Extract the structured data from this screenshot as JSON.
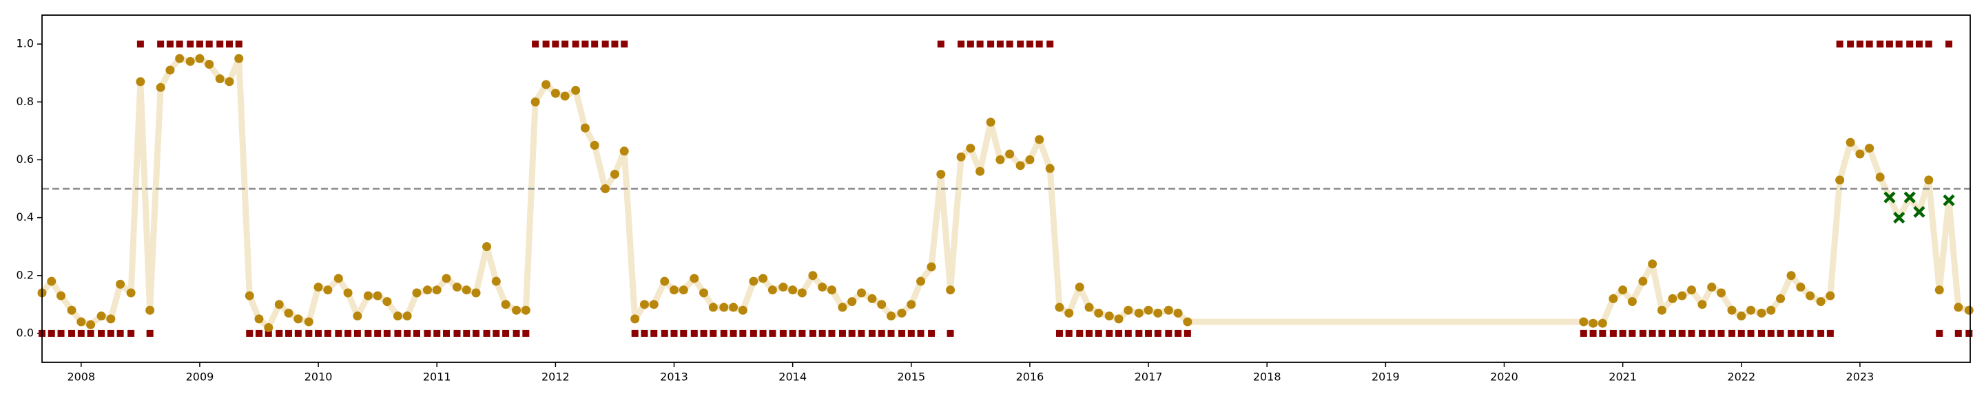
{
  "chart_data": {
    "type": "line",
    "x": [
      2007.67,
      2007.75,
      2007.83,
      2007.92,
      2008,
      2008.08,
      2008.17,
      2008.25,
      2008.33,
      2008.42,
      2008.5,
      2008.58,
      2008.67,
      2008.75,
      2008.83,
      2008.92,
      2009,
      2009.08,
      2009.17,
      2009.25,
      2009.33,
      2009.42,
      2009.5,
      2009.58,
      2009.67,
      2009.75,
      2009.83,
      2009.92,
      2010,
      2010.08,
      2010.17,
      2010.25,
      2010.33,
      2010.42,
      2010.5,
      2010.58,
      2010.67,
      2010.75,
      2010.83,
      2010.92,
      2011,
      2011.08,
      2011.17,
      2011.25,
      2011.33,
      2011.42,
      2011.5,
      2011.58,
      2011.67,
      2011.75,
      2011.83,
      2011.92,
      2012,
      2012.08,
      2012.17,
      2012.25,
      2012.33,
      2012.42,
      2012.5,
      2012.58,
      2012.67,
      2012.75,
      2012.83,
      2012.92,
      2013,
      2013.08,
      2013.17,
      2013.25,
      2013.33,
      2013.42,
      2013.5,
      2013.58,
      2013.67,
      2013.75,
      2013.83,
      2013.92,
      2014,
      2014.08,
      2014.17,
      2014.25,
      2014.33,
      2014.42,
      2014.5,
      2014.58,
      2014.67,
      2014.75,
      2014.83,
      2014.92,
      2015,
      2015.08,
      2015.17,
      2015.25,
      2015.33,
      2015.42,
      2015.5,
      2015.58,
      2015.67,
      2015.75,
      2015.83,
      2015.92,
      2016,
      2016.08,
      2016.17,
      2016.25,
      2016.33,
      2016.42,
      2016.5,
      2016.58,
      2016.67,
      2016.75,
      2016.83,
      2016.92,
      2017,
      2017.08,
      2017.17,
      2017.25,
      2017.33,
      2020.67,
      2020.75,
      2020.83,
      2020.92,
      2021,
      2021.08,
      2021.17,
      2021.25,
      2021.33,
      2021.42,
      2021.5,
      2021.58,
      2021.67,
      2021.75,
      2021.83,
      2021.92,
      2022,
      2022.08,
      2022.17,
      2022.25,
      2022.33,
      2022.42,
      2022.5,
      2022.58,
      2022.67,
      2022.75,
      2022.83,
      2022.92,
      2023,
      2023.08,
      2023.17,
      2023.25,
      2023.33,
      2023.42,
      2023.5,
      2023.58,
      2023.67,
      2023.75,
      2023.83,
      2023.92
    ],
    "series": [
      {
        "color": "#b8860b",
        "line_color": "#f3e8cc",
        "values": [
          0.14,
          0.18,
          0.13,
          0.08,
          0.04,
          0.03,
          0.06,
          0.05,
          0.17,
          0.14,
          0.87,
          0.08,
          0.85,
          0.91,
          0.95,
          0.94,
          0.95,
          0.93,
          0.88,
          0.87,
          0.95,
          0.13,
          0.05,
          0.02,
          0.1,
          0.07,
          0.05,
          0.04,
          0.16,
          0.15,
          0.19,
          0.14,
          0.06,
          0.13,
          0.13,
          0.11,
          0.06,
          0.06,
          0.14,
          0.15,
          0.15,
          0.19,
          0.16,
          0.15,
          0.14,
          0.3,
          0.18,
          0.1,
          0.08,
          0.08,
          0.8,
          0.86,
          0.83,
          0.82,
          0.84,
          0.71,
          0.65,
          0.5,
          0.55,
          0.63,
          0.05,
          0.1,
          0.1,
          0.18,
          0.15,
          0.15,
          0.19,
          0.14,
          0.09,
          0.09,
          0.09,
          0.08,
          0.18,
          0.19,
          0.15,
          0.16,
          0.15,
          0.14,
          0.2,
          0.16,
          0.15,
          0.09,
          0.11,
          0.14,
          0.12,
          0.1,
          0.06,
          0.07,
          0.1,
          0.18,
          0.23,
          0.55,
          0.15,
          0.61,
          0.64,
          0.56,
          0.73,
          0.6,
          0.62,
          0.58,
          0.6,
          0.67,
          0.57,
          0.09,
          0.07,
          0.16,
          0.09,
          0.07,
          0.06,
          0.05,
          0.08,
          0.07,
          0.08,
          0.07,
          0.08,
          0.07,
          0.04,
          0.04,
          0.035,
          0.035,
          0.12,
          0.15,
          0.11,
          0.18,
          0.24,
          0.08,
          0.12,
          0.13,
          0.15,
          0.1,
          0.16,
          0.14,
          0.08,
          0.06,
          0.08,
          0.07,
          0.08,
          0.12,
          0.2,
          0.16,
          0.13,
          0.11,
          0.13,
          0.53,
          0.66,
          0.62,
          0.64,
          0.54,
          0.47,
          0.4,
          0.47,
          0.42,
          0.53,
          0.15,
          0.46,
          0.09,
          0.08
        ]
      },
      {
        "color": "#8b0000",
        "marker": "square",
        "values": [
          0,
          0,
          0,
          0,
          0,
          0,
          0,
          0,
          0,
          0,
          1,
          0,
          1,
          1,
          1,
          1,
          1,
          1,
          1,
          1,
          1,
          0,
          0,
          0,
          0,
          0,
          0,
          0,
          0,
          0,
          0,
          0,
          0,
          0,
          0,
          0,
          0,
          0,
          0,
          0,
          0,
          0,
          0,
          0,
          0,
          0,
          0,
          0,
          0,
          0,
          1,
          1,
          1,
          1,
          1,
          1,
          1,
          1,
          1,
          1,
          0,
          0,
          0,
          0,
          0,
          0,
          0,
          0,
          0,
          0,
          0,
          0,
          0,
          0,
          0,
          0,
          0,
          0,
          0,
          0,
          0,
          0,
          0,
          0,
          0,
          0,
          0,
          0,
          0,
          0,
          0,
          1,
          0,
          1,
          1,
          1,
          1,
          1,
          1,
          1,
          1,
          1,
          1,
          0,
          0,
          0,
          0,
          0,
          0,
          0,
          0,
          0,
          0,
          0,
          0,
          0,
          0,
          0,
          0,
          0,
          0,
          0,
          0,
          0,
          0,
          0,
          0,
          0,
          0,
          0,
          0,
          0,
          0,
          0,
          0,
          0,
          0,
          0,
          0,
          0,
          0,
          0,
          0,
          1,
          1,
          1,
          1,
          1,
          1,
          1,
          1,
          1,
          1,
          0,
          1,
          0,
          0
        ]
      }
    ],
    "error_color": "#006400",
    "threshold": 0.5,
    "threshold_color": "#888888",
    "xlim": [
      2007.67,
      2023.93
    ],
    "xticks": [
      2008,
      2009,
      2010,
      2011,
      2012,
      2013,
      2014,
      2015,
      2016,
      2017,
      2018,
      2019,
      2020,
      2021,
      2022,
      2023
    ],
    "ylim": [
      -0.1,
      1.1
    ],
    "yticks": [
      {
        "value": 0,
        "label": "0.0"
      },
      0.2,
      0.4,
      0.6,
      0.8,
      {
        "value": 1,
        "label": "1.0"
      }
    ],
    "grid": false
  }
}
